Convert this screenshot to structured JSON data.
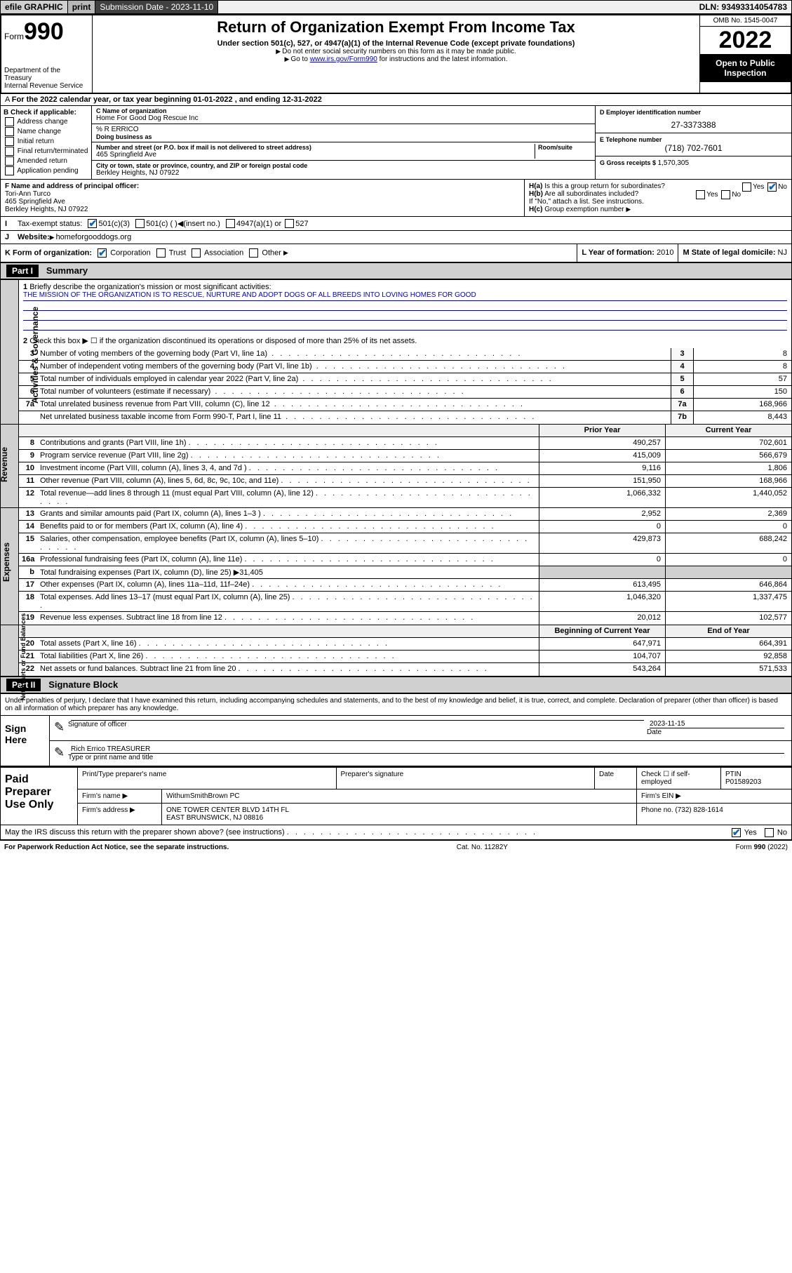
{
  "header": {
    "efile": "efile GRAPHIC",
    "print": "print",
    "sub_date_lbl": "Submission Date - 2023-11-10",
    "dln": "DLN: 93493314054783"
  },
  "top": {
    "form_word": "Form",
    "form_num": "990",
    "dept": "Department of the Treasury",
    "irs": "Internal Revenue Service",
    "title": "Return of Organization Exempt From Income Tax",
    "sub1": "Under section 501(c), 527, or 4947(a)(1) of the Internal Revenue Code (except private foundations)",
    "sub2": "Do not enter social security numbers on this form as it may be made public.",
    "sub3_pre": "Go to ",
    "sub3_link": "www.irs.gov/Form990",
    "sub3_post": " for instructions and the latest information.",
    "omb": "OMB No. 1545-0047",
    "year": "2022",
    "inspect": "Open to Public Inspection"
  },
  "a": {
    "text": "For the 2022 calendar year, or tax year beginning 01-01-2022   , and ending 12-31-2022"
  },
  "b": {
    "hdr": "B Check if applicable:",
    "opts": [
      "Address change",
      "Name change",
      "Initial return",
      "Final return/terminated",
      "Amended return",
      "Application pending"
    ]
  },
  "c": {
    "name_lbl": "C Name of organization",
    "name": "Home For Good Dog Rescue Inc",
    "care": "% R ERRICO",
    "dba_lbl": "Doing business as",
    "addr_lbl": "Number and street (or P.O. box if mail is not delivered to street address)",
    "room_lbl": "Room/suite",
    "addr": "465 Springfield Ave",
    "city_lbl": "City or town, state or province, country, and ZIP or foreign postal code",
    "city": "Berkley Heights, NJ  07922"
  },
  "d": {
    "lbl": "D Employer identification number",
    "val": "27-3373388"
  },
  "e": {
    "lbl": "E Telephone number",
    "val": "(718) 702-7601"
  },
  "g": {
    "lbl": "G Gross receipts $ ",
    "val": "1,570,305"
  },
  "f": {
    "lbl": "F  Name and address of principal officer:",
    "name": "Tori-Ann Turco",
    "addr1": "465 Springfield Ave",
    "addr2": "Berkley Heights, NJ  07922"
  },
  "h": {
    "a": "Is this a group return for subordinates?",
    "b": "Are all subordinates included?",
    "note": "If \"No,\" attach a list. See instructions.",
    "c": "Group exemption number"
  },
  "i": {
    "lbl": "Tax-exempt status:",
    "c3": "501(c)(3)",
    "c": "501(c) (  )",
    "ins": "(insert no.)",
    "a1": "4947(a)(1) or",
    "s527": "527"
  },
  "j": {
    "lbl": "Website:",
    "val": "homeforgooddogs.org"
  },
  "k": {
    "lbl": "K Form of organization:",
    "corp": "Corporation",
    "trust": "Trust",
    "assoc": "Association",
    "other": "Other"
  },
  "l": {
    "lbl": "L Year of formation: ",
    "val": "2010"
  },
  "m": {
    "lbl": "M State of legal domicile: ",
    "val": "NJ"
  },
  "part1": {
    "hdr": "Part I",
    "title": "Summary",
    "q1": "Briefly describe the organization's mission or most significant activities:",
    "mission": "THE MISSION OF THE ORGANIZATION IS TO RESCUE, NURTURE AND ADOPT DOGS OF ALL BREEDS INTO LOVING HOMES FOR GOOD",
    "q2": "Check this box ▶ ☐  if the organization discontinued its operations or disposed of more than 25% of its net assets.",
    "rows_gov": [
      {
        "n": "3",
        "d": "Number of voting members of the governing body (Part VI, line 1a)",
        "b": "3",
        "v": "8"
      },
      {
        "n": "4",
        "d": "Number of independent voting members of the governing body (Part VI, line 1b)",
        "b": "4",
        "v": "8"
      },
      {
        "n": "5",
        "d": "Total number of individuals employed in calendar year 2022 (Part V, line 2a)",
        "b": "5",
        "v": "57"
      },
      {
        "n": "6",
        "d": "Total number of volunteers (estimate if necessary)",
        "b": "6",
        "v": "150"
      },
      {
        "n": "7a",
        "d": "Total unrelated business revenue from Part VIII, column (C), line 12",
        "b": "7a",
        "v": "168,966"
      },
      {
        "n": "",
        "d": "Net unrelated business taxable income from Form 990-T, Part I, line 11",
        "b": "7b",
        "v": "8,443"
      }
    ],
    "col_prior": "Prior Year",
    "col_curr": "Current Year",
    "rows_rev": [
      {
        "n": "8",
        "d": "Contributions and grants (Part VIII, line 1h)",
        "p": "490,257",
        "c": "702,601"
      },
      {
        "n": "9",
        "d": "Program service revenue (Part VIII, line 2g)",
        "p": "415,009",
        "c": "566,679"
      },
      {
        "n": "10",
        "d": "Investment income (Part VIII, column (A), lines 3, 4, and 7d )",
        "p": "9,116",
        "c": "1,806"
      },
      {
        "n": "11",
        "d": "Other revenue (Part VIII, column (A), lines 5, 6d, 8c, 9c, 10c, and 11e)",
        "p": "151,950",
        "c": "168,966"
      },
      {
        "n": "12",
        "d": "Total revenue—add lines 8 through 11 (must equal Part VIII, column (A), line 12)",
        "p": "1,066,332",
        "c": "1,440,052"
      }
    ],
    "rows_exp": [
      {
        "n": "13",
        "d": "Grants and similar amounts paid (Part IX, column (A), lines 1–3 )",
        "p": "2,952",
        "c": "2,369"
      },
      {
        "n": "14",
        "d": "Benefits paid to or for members (Part IX, column (A), line 4)",
        "p": "0",
        "c": "0"
      },
      {
        "n": "15",
        "d": "Salaries, other compensation, employee benefits (Part IX, column (A), lines 5–10)",
        "p": "429,873",
        "c": "688,242"
      },
      {
        "n": "16a",
        "d": "Professional fundraising fees (Part IX, column (A), line 11e)",
        "p": "0",
        "c": "0"
      },
      {
        "n": "b",
        "d": "Total fundraising expenses (Part IX, column (D), line 25) ▶31,405",
        "p": "",
        "c": "",
        "gray": true
      },
      {
        "n": "17",
        "d": "Other expenses (Part IX, column (A), lines 11a–11d, 11f–24e)",
        "p": "613,495",
        "c": "646,864"
      },
      {
        "n": "18",
        "d": "Total expenses. Add lines 13–17 (must equal Part IX, column (A), line 25)",
        "p": "1,046,320",
        "c": "1,337,475"
      },
      {
        "n": "19",
        "d": "Revenue less expenses. Subtract line 18 from line 12",
        "p": "20,012",
        "c": "102,577"
      }
    ],
    "col_beg": "Beginning of Current Year",
    "col_end": "End of Year",
    "rows_net": [
      {
        "n": "20",
        "d": "Total assets (Part X, line 16)",
        "p": "647,971",
        "c": "664,391"
      },
      {
        "n": "21",
        "d": "Total liabilities (Part X, line 26)",
        "p": "104,707",
        "c": "92,858"
      },
      {
        "n": "22",
        "d": "Net assets or fund balances. Subtract line 21 from line 20",
        "p": "543,264",
        "c": "571,533"
      }
    ],
    "side_gov": "Activities & Governance",
    "side_rev": "Revenue",
    "side_exp": "Expenses",
    "side_net": "Net Assets or Fund Balances"
  },
  "part2": {
    "hdr": "Part II",
    "title": "Signature Block",
    "decl": "Under penalties of perjury, I declare that I have examined this return, including accompanying schedules and statements, and to the best of my knowledge and belief, it is true, correct, and complete. Declaration of preparer (other than officer) is based on all information of which preparer has any knowledge.",
    "sign_here": "Sign Here",
    "sig_officer_lbl": "Signature of officer",
    "sig_date": "2023-11-15",
    "date_lbl": "Date",
    "officer_name": "Rich Errico TREASURER",
    "officer_name_lbl": "Type or print name and title",
    "paid": "Paid Preparer Use Only",
    "prep_name_lbl": "Print/Type preparer's name",
    "prep_sig_lbl": "Preparer's signature",
    "prep_date_lbl": "Date",
    "check_lbl": "Check ☐ if self-employed",
    "ptin_lbl": "PTIN",
    "ptin": "P01589203",
    "firm_name_lbl": "Firm's name    ▶",
    "firm_name": "WithumSmithBrown PC",
    "firm_ein_lbl": "Firm's EIN ▶",
    "firm_addr_lbl": "Firm's address ▶",
    "firm_addr1": "ONE TOWER CENTER BLVD 14TH FL",
    "firm_addr2": "EAST BRUNSWICK, NJ  08816",
    "phone_lbl": "Phone no. ",
    "phone": "(732) 828-1614",
    "discuss": "May the IRS discuss this return with the preparer shown above? (see instructions)"
  },
  "footer": {
    "pra": "For Paperwork Reduction Act Notice, see the separate instructions.",
    "cat": "Cat. No. 11282Y",
    "form": "Form 990 (2022)"
  },
  "style": {
    "link_color": "#0000cc",
    "check_color": "#0066cc"
  }
}
